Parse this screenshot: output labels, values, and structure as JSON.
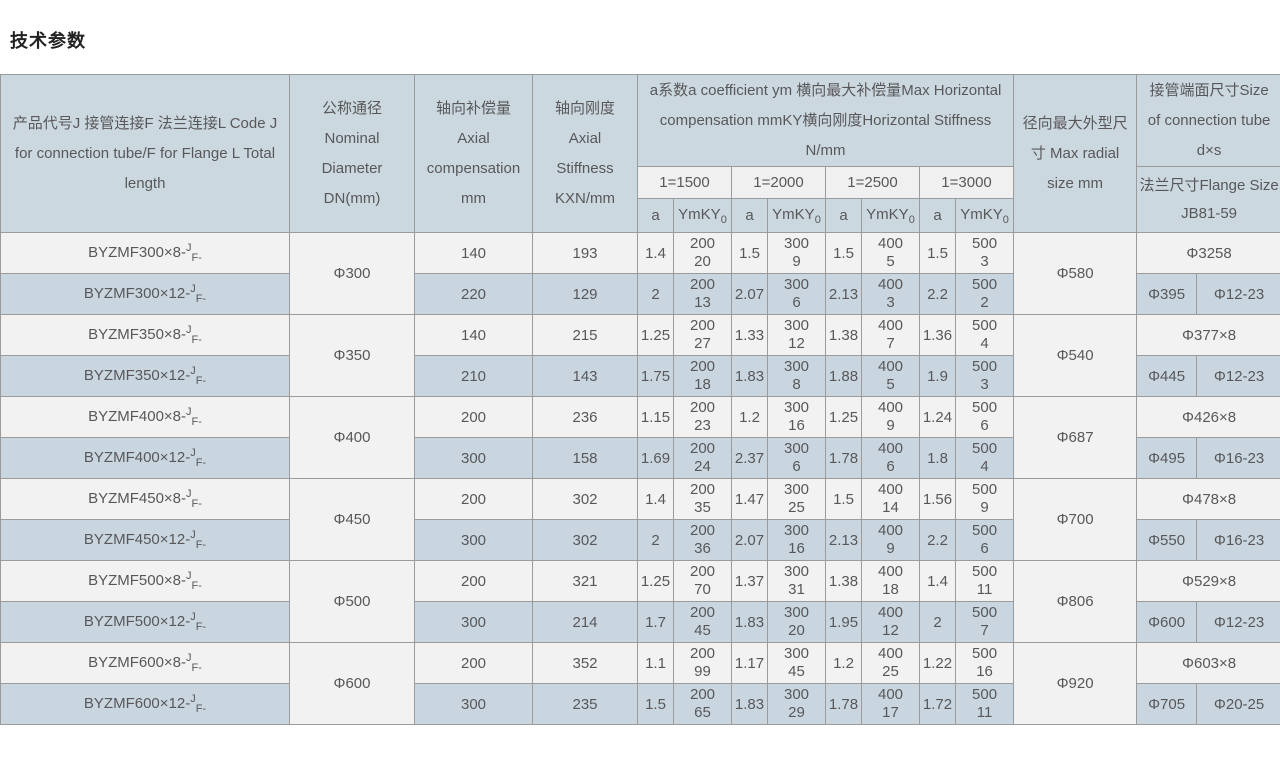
{
  "page": {
    "title": "技术参数"
  },
  "table": {
    "headers": {
      "product_code": "产品代号J 接管连接F 法兰连接L Code J for connection tube/F for Flange L Total length",
      "nominal_diameter": "公称通径Nominal Diameter DN(mm)",
      "axial_compensation": "轴向补偿量Axial compensation mm",
      "axial_stiffness": "轴向刚度Axial Stiffness KXN/mm",
      "coefficient_group": "a系数a coefficient ym 横向最大补偿量Max Horizontal compensation mmKY横向刚度Horizontal Stiffness N/mm",
      "length_groups": [
        "1=1500",
        "1=2000",
        "1=2500",
        "1=3000"
      ],
      "sub_a": "a",
      "sub_ymky": "YmKY",
      "sub_ymky_sub": "0",
      "max_radial": "径向最大外型尺寸 Max radial size mm",
      "tube_size": "接管端面尺寸Size of connection tube d×s",
      "flange_size": "法兰尺寸Flange Size JB81-59"
    },
    "code_suffix": {
      "sup": "J",
      "sub": "F-"
    },
    "colors": {
      "header_bg": "#ccd8e0",
      "subheader_bg": "#f0f0f0",
      "row_light_bg": "#f2f2f2",
      "row_blue_bg": "#c9d6e0",
      "border": "#9b9b9b",
      "text": "#58585a"
    },
    "row_pairs": [
      {
        "dn": "Φ300",
        "radial": "Φ580",
        "tube": "Φ3258",
        "flange": [
          "Φ395",
          "Φ12-23"
        ],
        "rows": [
          {
            "code": "BYZMF300×8-",
            "comp": "140",
            "stiff": "193",
            "groups": [
              [
                "1.4",
                "200",
                "20"
              ],
              [
                "1.5",
                "300",
                "9"
              ],
              [
                "1.5",
                "400",
                "5"
              ],
              [
                "1.5",
                "500",
                "3"
              ]
            ]
          },
          {
            "code": "BYZMF300×12-",
            "comp": "220",
            "stiff": "129",
            "groups": [
              [
                "2",
                "200",
                "13"
              ],
              [
                "2.07",
                "300",
                "6"
              ],
              [
                "2.13",
                "400",
                "3"
              ],
              [
                "2.2",
                "500",
                "2"
              ]
            ]
          }
        ]
      },
      {
        "dn": "Φ350",
        "radial": "Φ540",
        "tube": "Φ377×8",
        "flange": [
          "Φ445",
          "Φ12-23"
        ],
        "rows": [
          {
            "code": "BYZMF350×8-",
            "comp": "140",
            "stiff": "215",
            "groups": [
              [
                "1.25",
                "200",
                "27"
              ],
              [
                "1.33",
                "300",
                "12"
              ],
              [
                "1.38",
                "400",
                "7"
              ],
              [
                "1.36",
                "500",
                "4"
              ]
            ]
          },
          {
            "code": "BYZMF350×12-",
            "comp": "210",
            "stiff": "143",
            "groups": [
              [
                "1.75",
                "200",
                "18"
              ],
              [
                "1.83",
                "300",
                "8"
              ],
              [
                "1.88",
                "400",
                "5"
              ],
              [
                "1.9",
                "500",
                "3"
              ]
            ]
          }
        ]
      },
      {
        "dn": "Φ400",
        "radial": "Φ687",
        "tube": "Φ426×8",
        "flange": [
          "Φ495",
          "Φ16-23"
        ],
        "rows": [
          {
            "code": "BYZMF400×8-",
            "comp": "200",
            "stiff": "236",
            "groups": [
              [
                "1.15",
                "200",
                "23"
              ],
              [
                "1.2",
                "300",
                "16"
              ],
              [
                "1.25",
                "400",
                "9"
              ],
              [
                "1.24",
                "500",
                "6"
              ]
            ]
          },
          {
            "code": "BYZMF400×12-",
            "comp": "300",
            "stiff": "158",
            "groups": [
              [
                "1.69",
                "200",
                "24"
              ],
              [
                "2.37",
                "300",
                "6"
              ],
              [
                "1.78",
                "400",
                "6"
              ],
              [
                "1.8",
                "500",
                "4"
              ]
            ]
          }
        ]
      },
      {
        "dn": "Φ450",
        "radial": "Φ700",
        "tube": "Φ478×8",
        "flange": [
          "Φ550",
          "Φ16-23"
        ],
        "rows": [
          {
            "code": "BYZMF450×8-",
            "comp": "200",
            "stiff": "302",
            "groups": [
              [
                "1.4",
                "200",
                "35"
              ],
              [
                "1.47",
                "300",
                "25"
              ],
              [
                "1.5",
                "400",
                "14"
              ],
              [
                "1.56",
                "500",
                "9"
              ]
            ]
          },
          {
            "code": "BYZMF450×12-",
            "comp": "300",
            "stiff": "302",
            "groups": [
              [
                "2",
                "200",
                "36"
              ],
              [
                "2.07",
                "300",
                "16"
              ],
              [
                "2.13",
                "400",
                "9"
              ],
              [
                "2.2",
                "500",
                "6"
              ]
            ]
          }
        ]
      },
      {
        "dn": "Φ500",
        "radial": "Φ806",
        "tube": "Φ529×8",
        "flange": [
          "Φ600",
          "Φ12-23"
        ],
        "rows": [
          {
            "code": "BYZMF500×8-",
            "comp": "200",
            "stiff": "321",
            "groups": [
              [
                "1.25",
                "200",
                "70"
              ],
              [
                "1.37",
                "300",
                "31"
              ],
              [
                "1.38",
                "400",
                "18"
              ],
              [
                "1.4",
                "500",
                "11"
              ]
            ]
          },
          {
            "code": "BYZMF500×12-",
            "comp": "300",
            "stiff": "214",
            "groups": [
              [
                "1.7",
                "200",
                "45"
              ],
              [
                "1.83",
                "300",
                "20"
              ],
              [
                "1.95",
                "400",
                "12"
              ],
              [
                "2",
                "500",
                "7"
              ]
            ]
          }
        ]
      },
      {
        "dn": "Φ600",
        "radial": "Φ920",
        "tube": "Φ603×8",
        "flange": [
          "Φ705",
          "Φ20-25"
        ],
        "rows": [
          {
            "code": "BYZMF600×8-",
            "comp": "200",
            "stiff": "352",
            "groups": [
              [
                "1.1",
                "200",
                "99"
              ],
              [
                "1.17",
                "300",
                "45"
              ],
              [
                "1.2",
                "400",
                "25"
              ],
              [
                "1.22",
                "500",
                "16"
              ]
            ]
          },
          {
            "code": "BYZMF600×12-",
            "comp": "300",
            "stiff": "235",
            "groups": [
              [
                "1.5",
                "200",
                "65"
              ],
              [
                "1.83",
                "300",
                "29"
              ],
              [
                "1.78",
                "400",
                "17"
              ],
              [
                "1.72",
                "500",
                "11"
              ]
            ]
          }
        ]
      }
    ]
  }
}
